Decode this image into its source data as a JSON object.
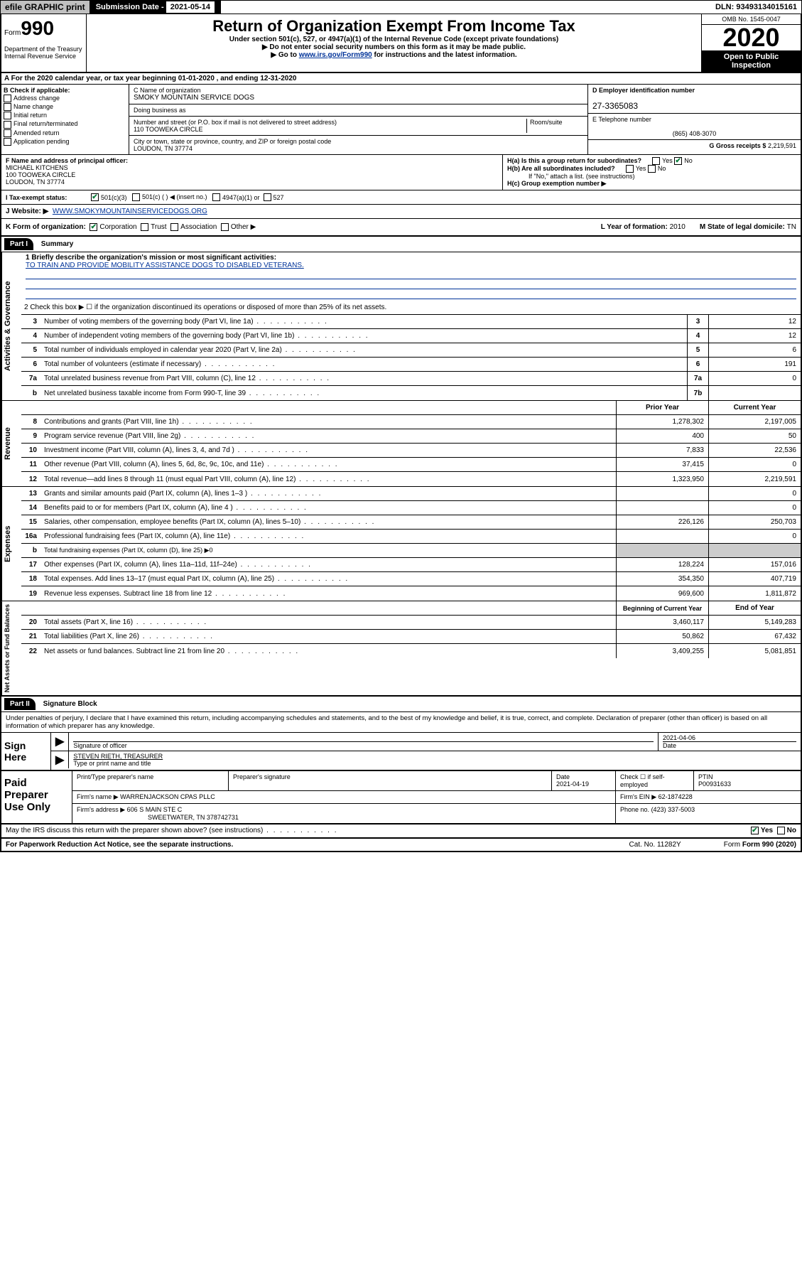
{
  "top": {
    "efile": "efile GRAPHIC print",
    "sub_label": "Submission Date - ",
    "sub_date": "2021-05-14",
    "dln": "DLN: 93493134015161"
  },
  "header": {
    "form": "Form",
    "form_no": "990",
    "title": "Return of Organization Exempt From Income Tax",
    "subtitle": "Under section 501(c), 527, or 4947(a)(1) of the Internal Revenue Code (except private foundations)",
    "note1": "▶ Do not enter social security numbers on this form as it may be made public.",
    "note2_pre": "▶ Go to ",
    "note2_link": "www.irs.gov/Form990",
    "note2_post": " for instructions and the latest information.",
    "omb": "OMB No. 1545-0047",
    "year": "2020",
    "open": "Open to Public Inspection",
    "dept": "Department of the Treasury Internal Revenue Service"
  },
  "sectionA": "A For the 2020 calendar year, or tax year beginning 01-01-2020   , and ending 12-31-2020",
  "boxB": {
    "label": "B Check if applicable:",
    "items": [
      "Address change",
      "Name change",
      "Initial return",
      "Final return/terminated",
      "Amended return",
      "Application pending"
    ]
  },
  "boxC": {
    "label": "C Name of organization",
    "org": "SMOKY MOUNTAIN SERVICE DOGS",
    "dba_label": "Doing business as",
    "addr_label": "Number and street (or P.O. box if mail is not delivered to street address)",
    "room_label": "Room/suite",
    "addr": "110 TOOWEKA CIRCLE",
    "city_label": "City or town, state or province, country, and ZIP or foreign postal code",
    "city": "LOUDON, TN  37774"
  },
  "boxD": {
    "label": "D Employer identification number",
    "val": "27-3365083"
  },
  "boxE": {
    "label": "E Telephone number",
    "val": "(865) 408-3070"
  },
  "boxG": {
    "label": "G Gross receipts $",
    "val": "2,219,591"
  },
  "boxF": {
    "label": "F  Name and address of principal officer:",
    "name": "MICHAEL KITCHENS",
    "addr": "100 TOOWEKA CIRCLE",
    "city": "LOUDON, TN  37774"
  },
  "boxH": {
    "a": "H(a)  Is this a group return for subordinates?",
    "b": "H(b)  Are all subordinates included?",
    "note": "If \"No,\" attach a list. (see instructions)",
    "c": "H(c)  Group exemption number ▶"
  },
  "rowI": {
    "label": "I   Tax-exempt status:",
    "opts": [
      "501(c)(3)",
      "501(c) (  ) ◀ (insert no.)",
      "4947(a)(1) or",
      "527"
    ]
  },
  "rowJ": {
    "label": "J   Website: ▶",
    "url": "WWW.SMOKYMOUNTAINSERVICEDOGS.ORG"
  },
  "rowK": {
    "label": "K Form of organization:",
    "opts": [
      "Corporation",
      "Trust",
      "Association",
      "Other ▶"
    ],
    "l": "L Year of formation: ",
    "l_val": "2010",
    "m": "M State of legal domicile: ",
    "m_val": "TN"
  },
  "part1": {
    "hdr": "Part I",
    "title": "Summary"
  },
  "gov": {
    "label": "Activities & Governance",
    "l1": "1  Briefly describe the organization's mission or most significant activities:",
    "mission": "TO TRAIN AND PROVIDE MOBILITY ASSISTANCE DOGS TO DISABLED VETERANS.",
    "l2": "2   Check this box ▶ ☐  if the organization discontinued its operations or disposed of more than 25% of its net assets.",
    "lines": [
      {
        "n": "3",
        "t": "Number of voting members of the governing body (Part VI, line 1a)",
        "box": "3",
        "v": "12"
      },
      {
        "n": "4",
        "t": "Number of independent voting members of the governing body (Part VI, line 1b)",
        "box": "4",
        "v": "12"
      },
      {
        "n": "5",
        "t": "Total number of individuals employed in calendar year 2020 (Part V, line 2a)",
        "box": "5",
        "v": "6"
      },
      {
        "n": "6",
        "t": "Total number of volunteers (estimate if necessary)",
        "box": "6",
        "v": "191"
      },
      {
        "n": "7a",
        "t": "Total unrelated business revenue from Part VIII, column (C), line 12",
        "box": "7a",
        "v": "0"
      },
      {
        "n": "b",
        "t": "Net unrelated business taxable income from Form 990-T, line 39",
        "box": "7b",
        "v": ""
      }
    ]
  },
  "rev": {
    "label": "Revenue",
    "hdr_prior": "Prior Year",
    "hdr_curr": "Current Year",
    "lines": [
      {
        "n": "8",
        "t": "Contributions and grants (Part VIII, line 1h)",
        "p": "1,278,302",
        "c": "2,197,005"
      },
      {
        "n": "9",
        "t": "Program service revenue (Part VIII, line 2g)",
        "p": "400",
        "c": "50"
      },
      {
        "n": "10",
        "t": "Investment income (Part VIII, column (A), lines 3, 4, and 7d )",
        "p": "7,833",
        "c": "22,536"
      },
      {
        "n": "11",
        "t": "Other revenue (Part VIII, column (A), lines 5, 6d, 8c, 9c, 10c, and 11e)",
        "p": "37,415",
        "c": "0"
      },
      {
        "n": "12",
        "t": "Total revenue—add lines 8 through 11 (must equal Part VIII, column (A), line 12)",
        "p": "1,323,950",
        "c": "2,219,591"
      }
    ]
  },
  "exp": {
    "label": "Expenses",
    "lines": [
      {
        "n": "13",
        "t": "Grants and similar amounts paid (Part IX, column (A), lines 1–3 )",
        "p": "",
        "c": "0"
      },
      {
        "n": "14",
        "t": "Benefits paid to or for members (Part IX, column (A), line 4 )",
        "p": "",
        "c": "0"
      },
      {
        "n": "15",
        "t": "Salaries, other compensation, employee benefits (Part IX, column (A), lines 5–10)",
        "p": "226,126",
        "c": "250,703"
      },
      {
        "n": "16a",
        "t": "Professional fundraising fees (Part IX, column (A), line 11e)",
        "p": "",
        "c": "0"
      },
      {
        "n": "b",
        "t": "Total fundraising expenses (Part IX, column (D), line 25) ▶0",
        "p": "—",
        "c": "—"
      },
      {
        "n": "17",
        "t": "Other expenses (Part IX, column (A), lines 11a–11d, 11f–24e)",
        "p": "128,224",
        "c": "157,016"
      },
      {
        "n": "18",
        "t": "Total expenses. Add lines 13–17 (must equal Part IX, column (A), line 25)",
        "p": "354,350",
        "c": "407,719"
      },
      {
        "n": "19",
        "t": "Revenue less expenses. Subtract line 18 from line 12",
        "p": "969,600",
        "c": "1,811,872"
      }
    ]
  },
  "net": {
    "label": "Net Assets or Fund Balances",
    "hdr_beg": "Beginning of Current Year",
    "hdr_end": "End of Year",
    "lines": [
      {
        "n": "20",
        "t": "Total assets (Part X, line 16)",
        "p": "3,460,117",
        "c": "5,149,283"
      },
      {
        "n": "21",
        "t": "Total liabilities (Part X, line 26)",
        "p": "50,862",
        "c": "67,432"
      },
      {
        "n": "22",
        "t": "Net assets or fund balances. Subtract line 21 from line 20",
        "p": "3,409,255",
        "c": "5,081,851"
      }
    ]
  },
  "part2": {
    "hdr": "Part II",
    "title": "Signature Block"
  },
  "perjury": "Under penalties of perjury, I declare that I have examined this return, including accompanying schedules and statements, and to the best of my knowledge and belief, it is true, correct, and complete. Declaration of preparer (other than officer) is based on all information of which preparer has any knowledge.",
  "sign": {
    "here": "Sign Here",
    "sig_label": "Signature of officer",
    "date_label": "Date",
    "date": "2021-04-06",
    "name": "STEVEN RIETH, TREASURER",
    "name_label": "Type or print name and title"
  },
  "paid": {
    "label": "Paid Preparer Use Only",
    "h1": "Print/Type preparer's name",
    "h2": "Preparer's signature",
    "h3": "Date",
    "date": "2021-04-19",
    "h4": "Check ☐ if self-employed",
    "h5": "PTIN",
    "ptin": "P00931633",
    "firm_label": "Firm's name    ▶",
    "firm": "WARRENJACKSON CPAS PLLC",
    "ein_label": "Firm's EIN ▶",
    "ein": "62-1874228",
    "addr_label": "Firm's address ▶",
    "addr": "606 S MAIN STE C",
    "addr2": "SWEETWATER, TN  378742731",
    "phone_label": "Phone no.",
    "phone": "(423) 337-5003"
  },
  "footer": {
    "discuss": "May the IRS discuss this return with the preparer shown above? (see instructions)",
    "pra": "For Paperwork Reduction Act Notice, see the separate instructions.",
    "cat": "Cat. No. 11282Y",
    "form": "Form 990 (2020)"
  }
}
